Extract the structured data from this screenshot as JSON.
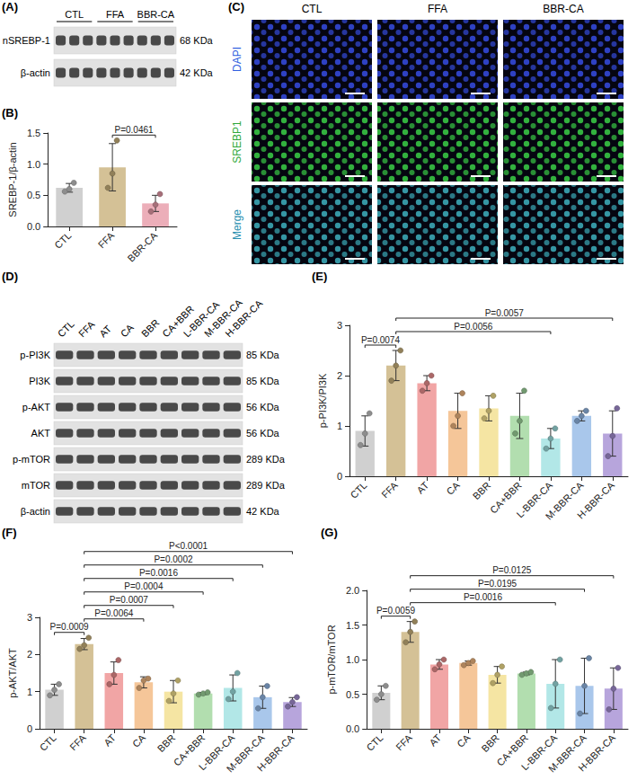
{
  "chart_data": [
    {
      "type": "bar",
      "panel": "(B)",
      "y_label": "SREBP-1/β-actin",
      "categories": [
        "CTL",
        "FFA",
        "BBR-CA"
      ],
      "values": [
        0.62,
        0.95,
        0.37
      ],
      "errors": [
        0.07,
        0.38,
        0.13
      ],
      "points": [
        [
          0.56,
          0.6,
          0.7
        ],
        [
          0.62,
          0.85,
          1.38
        ],
        [
          0.24,
          0.35,
          0.52
        ]
      ],
      "colors": [
        "#c4c4c4",
        "#c9b27c",
        "#e79aa8"
      ],
      "ylim": [
        0,
        1.5
      ],
      "yticks": [
        {
          "value": 0,
          "label": "0.0"
        },
        0.5,
        {
          "value": 1,
          "label": "1.0"
        },
        1.5
      ],
      "grid": false,
      "annotations": [
        {
          "from": "FFA",
          "to": "BBR-CA",
          "label": "P=0.0461"
        }
      ]
    },
    {
      "type": "bar",
      "panel": "(E)",
      "y_label": "p-PI3K/PI3K",
      "categories": [
        "CTL",
        "FFA",
        "AT",
        "CA",
        "BBR",
        "CA+BBR",
        "L-BBR-CA",
        "M-BBR-CA",
        "H-BBR-CA"
      ],
      "values": [
        0.9,
        2.2,
        1.85,
        1.3,
        1.35,
        1.2,
        0.75,
        1.2,
        0.85
      ],
      "errors": [
        0.3,
        0.3,
        0.15,
        0.35,
        0.25,
        0.45,
        0.2,
        0.1,
        0.45
      ],
      "points": [
        [
          0.62,
          0.85,
          1.25
        ],
        [
          1.9,
          2.2,
          2.5
        ],
        [
          1.7,
          1.85,
          2.0
        ],
        [
          1.0,
          1.2,
          1.65
        ],
        [
          1.15,
          1.3,
          1.6
        ],
        [
          0.85,
          1.1,
          1.7
        ],
        [
          0.55,
          0.75,
          0.95
        ],
        [
          1.1,
          1.2,
          1.3
        ],
        [
          0.4,
          0.8,
          1.35
        ]
      ],
      "colors": [
        "#c4c4c4",
        "#c9b27c",
        "#ee8f8f",
        "#f2b880",
        "#f3df8c",
        "#9fd69b",
        "#9fe1e1",
        "#93b9e6",
        "#a58fd3"
      ],
      "ylim": [
        0,
        3
      ],
      "yticks": [
        0,
        1,
        2,
        3
      ],
      "grid": false,
      "annotations": [
        {
          "from": "CTL",
          "to": "FFA",
          "label": "P=0.0074"
        },
        {
          "from": "FFA",
          "to": "L-BBR-CA",
          "label": "P=0.0056"
        },
        {
          "from": "FFA",
          "to": "H-BBR-CA",
          "label": "P=0.0057"
        }
      ]
    },
    {
      "type": "bar",
      "panel": "(F)",
      "y_label": "p-AKT/AKT",
      "categories": [
        "CTL",
        "FFA",
        "AT",
        "CA",
        "BBR",
        "CA+BBR",
        "L-BBR-CA",
        "M-BBR-CA",
        "H-BBR-CA"
      ],
      "values": [
        1.05,
        2.28,
        1.5,
        1.25,
        1.0,
        0.95,
        1.1,
        0.85,
        0.72
      ],
      "errors": [
        0.15,
        0.15,
        0.3,
        0.15,
        0.3,
        0.03,
        0.35,
        0.3,
        0.12
      ],
      "points": [
        [
          0.9,
          1.05,
          1.2
        ],
        [
          2.15,
          2.25,
          2.45
        ],
        [
          1.2,
          1.45,
          1.85
        ],
        [
          1.1,
          1.3,
          1.35
        ],
        [
          0.75,
          0.95,
          1.3
        ],
        [
          0.92,
          0.95,
          0.98
        ],
        [
          0.8,
          1.0,
          1.5
        ],
        [
          0.55,
          0.85,
          1.15
        ],
        [
          0.6,
          0.72,
          0.85
        ]
      ],
      "colors": [
        "#c4c4c4",
        "#c9b27c",
        "#ee8f8f",
        "#f2b880",
        "#f3df8c",
        "#9fd69b",
        "#9fe1e1",
        "#93b9e6",
        "#a58fd3"
      ],
      "ylim": [
        0,
        3
      ],
      "yticks": [
        0,
        1,
        2,
        3
      ],
      "grid": false,
      "annotations": [
        {
          "from": "CTL",
          "to": "FFA",
          "label": "P=0.0009"
        },
        {
          "from": "FFA",
          "to": "CA",
          "label": "P=0.0064"
        },
        {
          "from": "FFA",
          "to": "BBR",
          "label": "P=0.0007"
        },
        {
          "from": "FFA",
          "to": "CA+BBR",
          "label": "P=0.0004"
        },
        {
          "from": "FFA",
          "to": "L-BBR-CA",
          "label": "P=0.0016"
        },
        {
          "from": "FFA",
          "to": "M-BBR-CA",
          "label": "P=0.0002"
        },
        {
          "from": "FFA",
          "to": "H-BBR-CA",
          "label": "P<0.0001"
        }
      ]
    },
    {
      "type": "bar",
      "panel": "(G)",
      "y_label": "p-mTOR/mTOR",
      "categories": [
        "CTL",
        "FFA",
        "AT",
        "CA",
        "BBR",
        "CA+BBR",
        "L-BBR-CA",
        "M-BBR-CA",
        "H-BBR-CA"
      ],
      "values": [
        0.52,
        1.4,
        0.93,
        0.95,
        0.78,
        0.8,
        0.65,
        0.62,
        0.58
      ],
      "errors": [
        0.1,
        0.15,
        0.07,
        0.03,
        0.12,
        0.02,
        0.35,
        0.4,
        0.3
      ],
      "points": [
        [
          0.42,
          0.5,
          0.62
        ],
        [
          1.25,
          1.4,
          1.55
        ],
        [
          0.86,
          0.93,
          1.0
        ],
        [
          0.92,
          0.95,
          0.98
        ],
        [
          0.66,
          0.78,
          0.9
        ],
        [
          0.78,
          0.8,
          0.82
        ],
        [
          0.3,
          0.65,
          1.0
        ],
        [
          0.22,
          0.62,
          1.02
        ],
        [
          0.28,
          0.58,
          0.88
        ]
      ],
      "colors": [
        "#c4c4c4",
        "#c9b27c",
        "#ee8f8f",
        "#f2b880",
        "#f3df8c",
        "#9fd69b",
        "#9fe1e1",
        "#93b9e6",
        "#a58fd3"
      ],
      "ylim": [
        0,
        2
      ],
      "yticks": [
        {
          "value": 0,
          "label": "0.0"
        },
        0.5,
        {
          "value": 1,
          "label": "1.0"
        },
        1.5,
        {
          "value": 2,
          "label": "2.0"
        }
      ],
      "grid": false,
      "annotations": [
        {
          "from": "CTL",
          "to": "FFA",
          "label": "P=0.0059"
        },
        {
          "from": "FFA",
          "to": "L-BBR-CA",
          "label": "P=0.0016"
        },
        {
          "from": "FFA",
          "to": "M-BBR-CA",
          "label": "P=0.0195"
        },
        {
          "from": "FFA",
          "to": "H-BBR-CA",
          "label": "P=0.0125"
        }
      ]
    }
  ],
  "blots": [
    {
      "panel": "(A)",
      "groups": [
        {
          "label": "CTL",
          "lanes": 3
        },
        {
          "label": "FFA",
          "lanes": 3
        },
        {
          "label": "BBR-CA",
          "lanes": 3
        }
      ],
      "rows": [
        {
          "label": "nSREBP-1",
          "size": "68 KDa"
        },
        {
          "label": "β-actin",
          "size": "42 KDa"
        }
      ]
    },
    {
      "panel": "(D)",
      "lanes": [
        "CTL",
        "FFA",
        "AT",
        "CA",
        "BBR",
        "CA+BBR",
        "L-BBR-CA",
        "M-BBR-CA",
        "H-BBR-CA"
      ],
      "rows": [
        {
          "label": "p-PI3K",
          "size": "85 KDa"
        },
        {
          "label": "PI3K",
          "size": "85 KDa"
        },
        {
          "label": "p-AKT",
          "size": "56 KDa"
        },
        {
          "label": "AKT",
          "size": "56 KDa"
        },
        {
          "label": "p-mTOR",
          "size": "289 KDa"
        },
        {
          "label": "mTOR",
          "size": "289 KDa"
        },
        {
          "label": "β-actin",
          "size": "42 KDa"
        }
      ]
    }
  ],
  "images": {
    "panel": "(C)",
    "columns": [
      "CTL",
      "FFA",
      "BBR-CA"
    ],
    "rows": [
      "DAPI",
      "SREBP1",
      "Merge"
    ]
  }
}
